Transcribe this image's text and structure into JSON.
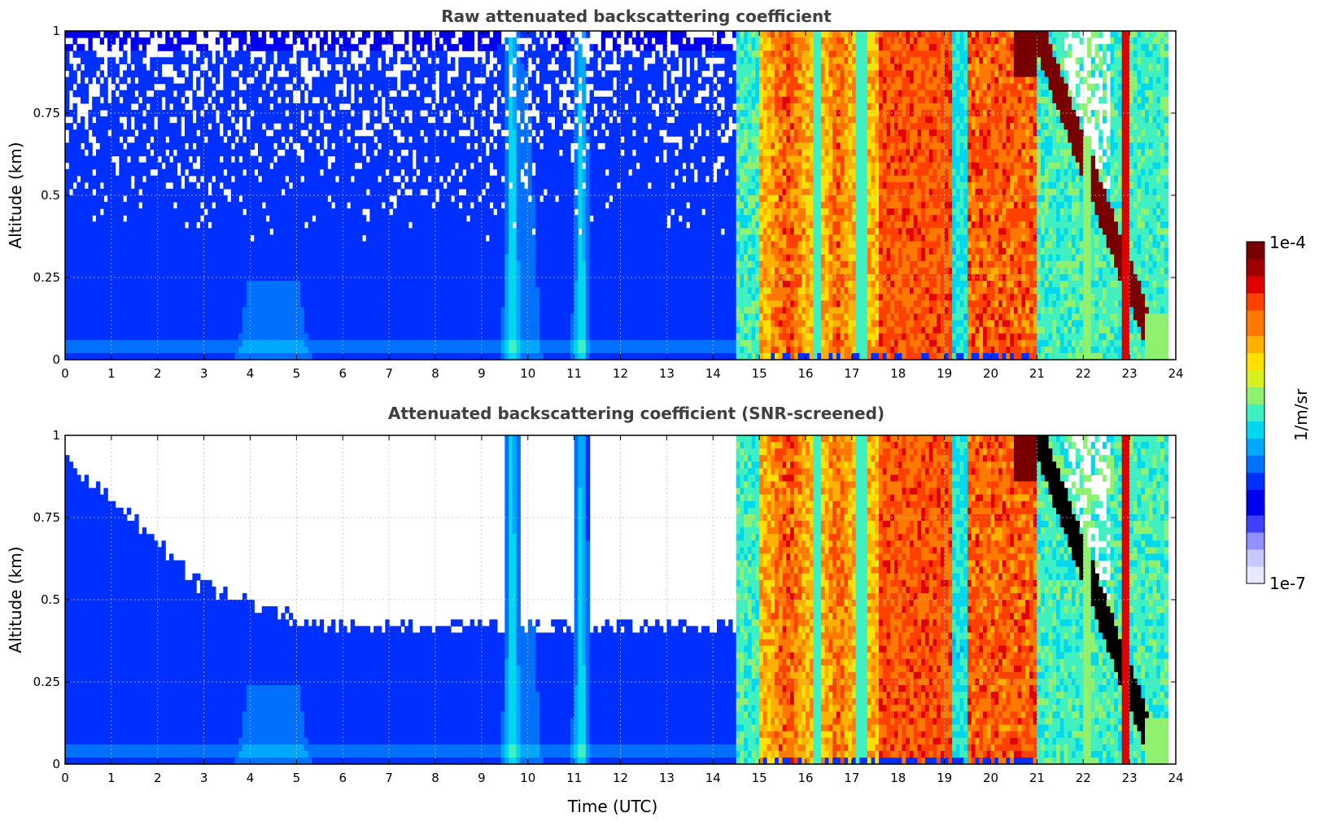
{
  "chart_data": [
    {
      "type": "heatmap",
      "title": "Raw attenuated backscattering coefficient",
      "xlabel": "",
      "ylabel": "Altitude (km)",
      "xlim": [
        0,
        24
      ],
      "ylim": [
        0,
        1
      ],
      "xticks": [
        "0",
        "1",
        "2",
        "3",
        "4",
        "5",
        "6",
        "7",
        "8",
        "9",
        "10",
        "11",
        "12",
        "13",
        "14",
        "15",
        "16",
        "17",
        "18",
        "19",
        "20",
        "21",
        "22",
        "23",
        "24"
      ],
      "yticks": [
        "0",
        "0.25",
        "0.5",
        "0.75",
        "1"
      ],
      "grid": true,
      "snr_screened": false,
      "time_utc_segments": [
        {
          "t": [
            0,
            9.5
          ],
          "level": "low",
          "note_free": true
        },
        {
          "t": [
            9.6,
            9.8
          ],
          "level": "mid"
        },
        {
          "t": [
            11.0,
            11.3
          ],
          "level": "mid"
        },
        {
          "t": [
            14.5,
            17.6
          ],
          "level": "high"
        },
        {
          "t": [
            17.6,
            19.2
          ],
          "level": "very-high"
        },
        {
          "t": [
            19.5,
            21.0
          ],
          "level": "very-high"
        },
        {
          "t": [
            21.0,
            23.8
          ],
          "level": "cloud"
        }
      ]
    },
    {
      "type": "heatmap",
      "title": "Attenuated backscattering coefficient (SNR-screened)",
      "xlabel": "Time (UTC)",
      "ylabel": "Altitude (km)",
      "xlim": [
        0,
        24
      ],
      "ylim": [
        0,
        1
      ],
      "xticks": [
        "0",
        "1",
        "2",
        "3",
        "4",
        "5",
        "6",
        "7",
        "8",
        "9",
        "10",
        "11",
        "12",
        "13",
        "14",
        "15",
        "16",
        "17",
        "18",
        "19",
        "20",
        "21",
        "22",
        "23",
        "24"
      ],
      "yticks": [
        "0",
        "0.25",
        "0.5",
        "0.75",
        "1"
      ],
      "grid": true,
      "snr_screened": true
    }
  ],
  "colorbar": {
    "label": "1/m/sr",
    "max_label": "1e-4",
    "min_label": "1e-7",
    "colors": [
      "#e8e8ff",
      "#c8c8ff",
      "#9090ff",
      "#4040ff",
      "#0000f0",
      "#0030ff",
      "#0070ff",
      "#00a8ff",
      "#00d8f0",
      "#40f0c0",
      "#90f070",
      "#d8f020",
      "#ffe000",
      "#ffb000",
      "#ff7800",
      "#ff4000",
      "#e00000",
      "#a00000",
      "#780000"
    ]
  }
}
